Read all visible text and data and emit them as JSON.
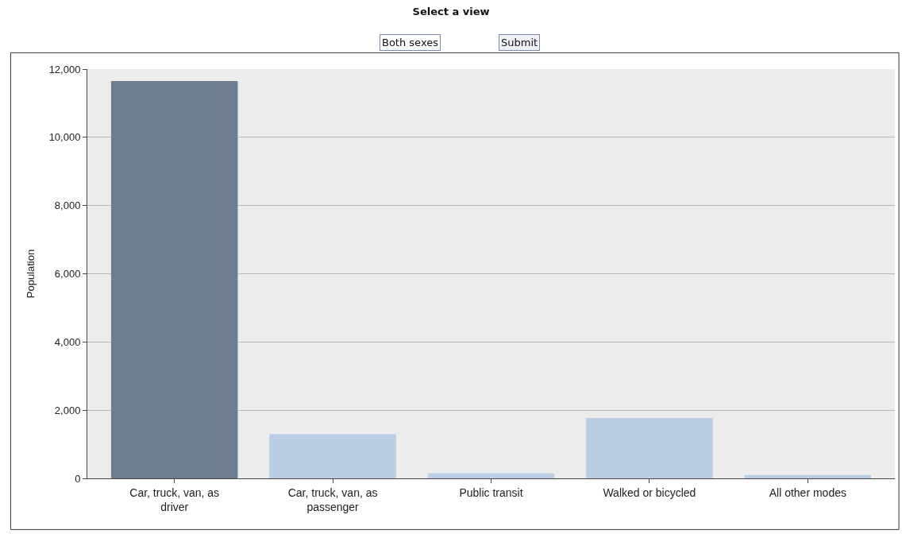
{
  "chart_data": {
    "type": "bar",
    "title": "Select a view",
    "ylabel": "Population",
    "categories": [
      "Car, truck, van, as driver",
      "Car, truck, van, as passenger",
      "Public transit",
      "Walked or bicycled",
      "All other modes"
    ],
    "values": [
      11650,
      1300,
      150,
      1770,
      100
    ],
    "colors": [
      "#6f7d90",
      "#bccde6",
      "#bccde6",
      "#bccde6",
      "#bccde6"
    ],
    "ylim": [
      0,
      12000
    ],
    "yticks": [
      {
        "value": 0,
        "label": "0"
      },
      {
        "value": 2000,
        "label": "2,000"
      },
      {
        "value": 4000,
        "label": "4,000"
      },
      {
        "value": 6000,
        "label": "6,000"
      },
      {
        "value": 8000,
        "label": "8,000"
      },
      {
        "value": 10000,
        "label": "10,000"
      },
      {
        "value": 12000,
        "label": "12,000"
      }
    ],
    "grid": "y",
    "annotations": [
      "Both sexes",
      "Submit"
    ]
  }
}
